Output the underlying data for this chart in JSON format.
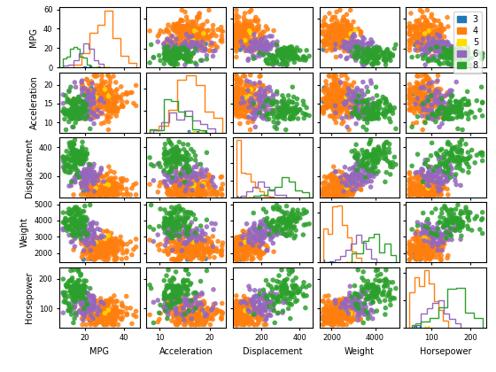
{
  "variables": [
    "MPG",
    "Acceleration",
    "Displacement",
    "Weight",
    "Horsepower"
  ],
  "cylinder_values": [
    3,
    4,
    5,
    6,
    8
  ],
  "colors": {
    "3": "#1f77b4",
    "4": "#ff7f0e",
    "5": "#ffdd00",
    "6": "#9467bd",
    "8": "#2ca02c"
  },
  "marker": "o",
  "marker_size": 4,
  "title": "",
  "figsize": [
    5.6,
    4.2
  ],
  "dpi": 100
}
